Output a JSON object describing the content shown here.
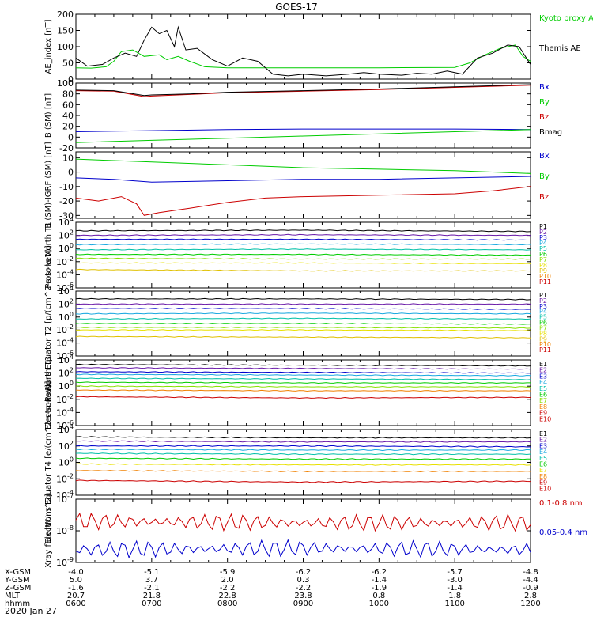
{
  "title": "GOES-17",
  "date_label": "2020 Jan 27",
  "colors": {
    "black": "#000000",
    "red": "#cc0000",
    "green": "#00cc00",
    "blue": "#0000cc",
    "purple": "#6a1aa8",
    "cyan": "#18a8e0",
    "teal": "#00c0a8",
    "orange": "#f08000",
    "yellow": "#e8e000",
    "gold": "#e0c000",
    "lime": "#88e000"
  },
  "x_axis": {
    "times": [
      "0600",
      "0700",
      "0800",
      "0900",
      "1000",
      "1100",
      "1200"
    ],
    "rows": [
      {
        "label": "X-GSM",
        "values": [
          "-4.0",
          "-5.1",
          "-5.9",
          "-6.2",
          "-6.2",
          "-5.7",
          "-4.8"
        ]
      },
      {
        "label": "Y-GSM",
        "values": [
          "5.0",
          "3.7",
          "2.0",
          "0.3",
          "-1.4",
          "-3.0",
          "-4.4"
        ]
      },
      {
        "label": "Z-GSM",
        "values": [
          "-1.6",
          "-2.1",
          "-2.2",
          "-2.2",
          "-1.9",
          "-1.4",
          "-0.9"
        ]
      },
      {
        "label": "MLT",
        "values": [
          "20.7",
          "21.8",
          "22.8",
          "23.8",
          "0.8",
          "1.8",
          "2.8"
        ]
      },
      {
        "label": "hhmm",
        "values": [
          "0600",
          "0700",
          "0800",
          "0900",
          "1000",
          "1100",
          "1200"
        ]
      }
    ]
  },
  "chart_data": [
    {
      "type": "line",
      "ylabel": "AE_index [nT]",
      "ylim": [
        0,
        200
      ],
      "ticks": [
        "0",
        "50",
        "100",
        "150",
        "200"
      ],
      "series": [
        {
          "name": "Kyoto proxy AE",
          "color": "#00cc00",
          "x": [
            6.0,
            6.2,
            6.4,
            6.5,
            6.6,
            6.75,
            6.9,
            7.1,
            7.2,
            7.35,
            7.5,
            7.7,
            8.0,
            9.0,
            10.0,
            11.0,
            11.2,
            11.4,
            11.6,
            11.7,
            11.8,
            11.9,
            12.0
          ],
          "y": [
            35,
            34,
            38,
            55,
            85,
            90,
            70,
            75,
            60,
            70,
            55,
            38,
            35,
            35,
            35,
            36,
            50,
            75,
            95,
            100,
            105,
            70,
            55
          ]
        },
        {
          "name": "Themis AE",
          "color": "#000000",
          "x": [
            6.0,
            6.15,
            6.35,
            6.5,
            6.65,
            6.8,
            6.9,
            7.0,
            7.1,
            7.2,
            7.3,
            7.35,
            7.45,
            7.6,
            7.8,
            8.0,
            8.2,
            8.4,
            8.6,
            8.8,
            9.0,
            9.3,
            9.6,
            9.8,
            10.0,
            10.3,
            10.5,
            10.7,
            10.9,
            11.1,
            11.3,
            11.5,
            11.7,
            11.85,
            12.0
          ],
          "y": [
            65,
            40,
            45,
            65,
            80,
            70,
            120,
            160,
            140,
            150,
            100,
            160,
            90,
            95,
            60,
            40,
            65,
            55,
            15,
            10,
            15,
            10,
            15,
            20,
            15,
            12,
            18,
            15,
            25,
            15,
            65,
            80,
            105,
            100,
            45
          ]
        }
      ]
    },
    {
      "type": "line",
      "ylabel": "B (SM) [nT]",
      "ylim": [
        -20,
        100
      ],
      "ticks": [
        "-20",
        "0",
        "20",
        "40",
        "60",
        "80",
        "100"
      ],
      "series": [
        {
          "name": "Bx",
          "color": "#0000cc",
          "x": [
            6.0,
            7.0,
            8.0,
            9.0,
            10.0,
            11.0,
            12.0
          ],
          "y": [
            10,
            12,
            14,
            15,
            15,
            15,
            14
          ]
        },
        {
          "name": "By",
          "color": "#00cc00",
          "x": [
            6.0,
            7.0,
            8.0,
            9.0,
            10.0,
            11.0,
            12.0
          ],
          "y": [
            -10,
            -6,
            -2,
            2,
            6,
            10,
            14
          ]
        },
        {
          "name": "Bz",
          "color": "#cc0000",
          "x": [
            6.0,
            6.5,
            6.9,
            7.0,
            7.5,
            8.0,
            9.0,
            10.0,
            11.0,
            12.0
          ],
          "y": [
            86,
            85,
            75,
            76,
            79,
            82,
            85,
            88,
            92,
            96
          ]
        },
        {
          "name": "Bmag",
          "color": "#000000",
          "x": [
            6.0,
            6.5,
            6.9,
            7.0,
            7.5,
            8.0,
            9.0,
            10.0,
            11.0,
            12.0
          ],
          "y": [
            87,
            86,
            77,
            78,
            80,
            83,
            86,
            89,
            93,
            97
          ]
        }
      ]
    },
    {
      "type": "line",
      "ylabel": "B (SM)-IGRF (SM) [nT]",
      "ylim": [
        -32,
        14
      ],
      "ticks": [
        "-30",
        "-20",
        "-10",
        "0",
        "10"
      ],
      "series": [
        {
          "name": "Bx",
          "color": "#0000cc",
          "x": [
            6.0,
            6.5,
            7.0,
            8.0,
            9.0,
            10.0,
            11.0,
            12.0
          ],
          "y": [
            -4,
            -5,
            -7,
            -6,
            -5,
            -5,
            -4,
            -3
          ]
        },
        {
          "name": "By",
          "color": "#00cc00",
          "x": [
            6.0,
            6.5,
            7.0,
            8.0,
            9.0,
            10.0,
            11.0,
            12.0
          ],
          "y": [
            9,
            8,
            7,
            5,
            3,
            2,
            1,
            -1
          ]
        },
        {
          "name": "Bz",
          "color": "#cc0000",
          "x": [
            6.0,
            6.3,
            6.6,
            6.8,
            6.9,
            7.1,
            7.5,
            8.0,
            8.5,
            9.0,
            10.0,
            11.0,
            11.5,
            12.0
          ],
          "y": [
            -18,
            -20,
            -17,
            -22,
            -30,
            -28,
            -25,
            -21,
            -18,
            -17,
            -16,
            -15,
            -13,
            -10
          ]
        }
      ]
    },
    {
      "type": "line",
      "ylabel": "Protons North T1",
      "log": true,
      "ylim": [
        -6,
        4
      ],
      "ticks": [
        "10^4",
        "10^2",
        "10^0",
        "10^-2",
        "10^-4",
        "10^-6"
      ],
      "series": [
        {
          "name": "P1",
          "color": "#000000",
          "level": [
            2.7,
            2.8,
            2.6
          ]
        },
        {
          "name": "P2",
          "color": "#6a1aa8",
          "level": [
            2.0,
            2.1,
            2.0
          ]
        },
        {
          "name": "P3",
          "color": "#0000cc",
          "level": [
            1.4,
            1.4,
            1.3
          ]
        },
        {
          "name": "P4",
          "color": "#18a8e0",
          "level": [
            0.6,
            0.7,
            0.6
          ]
        },
        {
          "name": "P5",
          "color": "#00c0a8",
          "level": [
            -0.2,
            -0.1,
            -0.2
          ]
        },
        {
          "name": "P6",
          "color": "#00cc00",
          "level": [
            -0.9,
            -0.9,
            -1.0
          ]
        },
        {
          "name": "P7",
          "color": "#88e000",
          "level": [
            -1.5,
            -1.6,
            -1.6
          ]
        },
        {
          "name": "P8",
          "color": "#e8e000",
          "level": [
            -2.2,
            -2.2,
            -2.3
          ]
        },
        {
          "name": "P9",
          "color": "#e0c000",
          "level": [
            -3.2,
            -3.4,
            -3.4
          ]
        },
        {
          "name": "P10",
          "color": "#f08000",
          "level": []
        },
        {
          "name": "P11",
          "color": "#cc0000",
          "level": []
        }
      ]
    },
    {
      "type": "line",
      "ylabel": "Protons Equator T2 [p/(cm^2-s-sr-keV)]",
      "log": true,
      "ylim": [
        -6,
        4
      ],
      "ticks": [
        "10^4",
        "10^2",
        "10^0",
        "10^-2",
        "10^-4",
        "10^-6"
      ],
      "series": [
        {
          "name": "P1",
          "color": "#000000",
          "level": [
            2.8,
            2.8,
            2.7
          ]
        },
        {
          "name": "P2",
          "color": "#6a1aa8",
          "level": [
            2.0,
            2.0,
            2.0
          ]
        },
        {
          "name": "P3",
          "color": "#0000cc",
          "level": [
            1.3,
            1.3,
            1.2
          ]
        },
        {
          "name": "P4",
          "color": "#18a8e0",
          "level": [
            0.5,
            0.6,
            0.5
          ]
        },
        {
          "name": "P5",
          "color": "#00c0a8",
          "level": [
            -0.3,
            -0.2,
            -0.3
          ]
        },
        {
          "name": "P6",
          "color": "#00cc00",
          "level": [
            -1.0,
            -1.0,
            -1.1
          ]
        },
        {
          "name": "P7",
          "color": "#88e000",
          "level": [
            -1.6,
            -1.6,
            -1.7
          ]
        },
        {
          "name": "P8",
          "color": "#e8e000",
          "level": [
            -2.0,
            -2.0,
            -2.1
          ]
        },
        {
          "name": "P9",
          "color": "#e0c000",
          "level": [
            -3.0,
            -3.1,
            -3.2
          ]
        },
        {
          "name": "P10",
          "color": "#f08000",
          "level": []
        },
        {
          "name": "P11",
          "color": "#cc0000",
          "level": []
        }
      ]
    },
    {
      "type": "line",
      "ylabel": "Electrons North T3",
      "log": true,
      "ylim": [
        -6,
        4
      ],
      "ticks": [
        "10^4",
        "10^2",
        "10^0",
        "10^-2",
        "10^-4",
        "10^-6"
      ],
      "series": [
        {
          "name": "E1",
          "color": "#000000",
          "level": [
            3.3,
            3.2,
            3.1
          ]
        },
        {
          "name": "E2",
          "color": "#6a1aa8",
          "level": [
            2.8,
            2.7,
            2.6
          ]
        },
        {
          "name": "E3",
          "color": "#0000cc",
          "level": [
            2.2,
            2.1,
            2.0
          ]
        },
        {
          "name": "E4",
          "color": "#18a8e0",
          "level": [
            1.8,
            1.7,
            1.6
          ]
        },
        {
          "name": "E5",
          "color": "#00c0a8",
          "level": [
            1.2,
            1.1,
            1.0
          ]
        },
        {
          "name": "E6",
          "color": "#00cc00",
          "level": [
            0.6,
            0.5,
            0.5
          ]
        },
        {
          "name": "E7",
          "color": "#88e000",
          "level": [
            0.0,
            -0.1,
            -0.1
          ]
        },
        {
          "name": "E8",
          "color": "#f08000",
          "level": [
            -0.6,
            -0.7,
            -0.7
          ]
        },
        {
          "name": "E9",
          "color": "#cc0000",
          "level": [
            -1.6,
            -1.8,
            -1.7
          ]
        },
        {
          "name": "E10",
          "color": "#cc0000",
          "level": []
        }
      ]
    },
    {
      "type": "line",
      "ylabel": "Electrons Equator T4 [e/(cm^2-s-sr-keV)]",
      "log": true,
      "ylim": [
        -4,
        4
      ],
      "ticks": [
        "10^4",
        "10^2",
        "10^0",
        "10^-2",
        "10^-4"
      ],
      "series": [
        {
          "name": "E1",
          "color": "#000000",
          "level": [
            3.1,
            3.0,
            3.0
          ]
        },
        {
          "name": "E2",
          "color": "#6a1aa8",
          "level": [
            2.6,
            2.5,
            2.5
          ]
        },
        {
          "name": "E3",
          "color": "#0000cc",
          "level": [
            2.0,
            2.0,
            1.9
          ]
        },
        {
          "name": "E4",
          "color": "#18a8e0",
          "level": [
            1.6,
            1.5,
            1.5
          ]
        },
        {
          "name": "E5",
          "color": "#00c0a8",
          "level": [
            1.1,
            1.0,
            1.0
          ]
        },
        {
          "name": "E6",
          "color": "#00cc00",
          "level": [
            0.5,
            0.4,
            0.4
          ]
        },
        {
          "name": "E7",
          "color": "#e8e000",
          "level": [
            -0.2,
            -0.3,
            -0.3
          ]
        },
        {
          "name": "E8",
          "color": "#f08000",
          "level": [
            -1.0,
            -1.1,
            -1.1
          ]
        },
        {
          "name": "E9",
          "color": "#cc0000",
          "level": [
            -2.2,
            -2.4,
            -2.3
          ]
        },
        {
          "name": "E10",
          "color": "#cc0000",
          "level": []
        }
      ]
    },
    {
      "type": "line",
      "ylabel": "Xray flux [W/m^2]",
      "log": true,
      "ylim": [
        -9,
        -7
      ],
      "ticks": [
        "10^-7",
        "10^-8",
        "10^-9"
      ],
      "series": [
        {
          "name": "0.1-0.8 nm",
          "color": "#cc0000",
          "level": [
            -7.7,
            -7.75,
            -7.75
          ]
        },
        {
          "name": "0.05-0.4 nm",
          "color": "#0000cc",
          "level": [
            -8.6,
            -8.55,
            -8.6
          ]
        }
      ]
    }
  ]
}
